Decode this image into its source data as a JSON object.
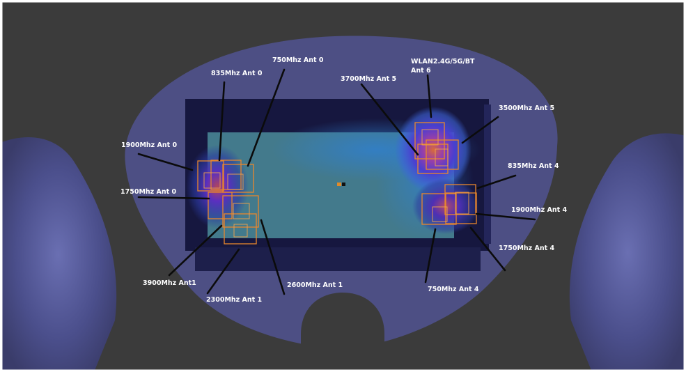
{
  "figure": {
    "labels": {
      "a750_ant0": "750Mhz Ant 0",
      "a835_ant0": "835Mhz Ant 0",
      "a1900_ant0": "1900Mhz Ant 0",
      "a1750_ant0": "1750Mhz Ant 0",
      "a3900_ant1": "3900Mhz Ant1",
      "a2300_ant1": "2300Mhz Ant 1",
      "a2600_ant1": "2600Mhz Ant 1",
      "a3700_ant5": "3700Mhz Ant 5",
      "wlan_line1": "WLAN2.4G/5G/BT",
      "wlan_line2": "Ant 6",
      "a3500_ant5": "3500Mhz Ant 5",
      "a835_ant4": "835Mhz Ant 4",
      "a1900_ant4": "1900Mhz Ant 4",
      "a1750_ant4": "1750Mhz Ant 4",
      "a750_ant4": "750Mhz Ant 4"
    },
    "colors": {
      "background": "#3b3b3b",
      "head_phantom": "#4d4f84",
      "device_body": "#16173f",
      "display_area": "#4b8c9a",
      "hotspot_outline": "#e9872c",
      "leader_line": "#0b0b0b",
      "label_text": "#ffffff"
    }
  }
}
